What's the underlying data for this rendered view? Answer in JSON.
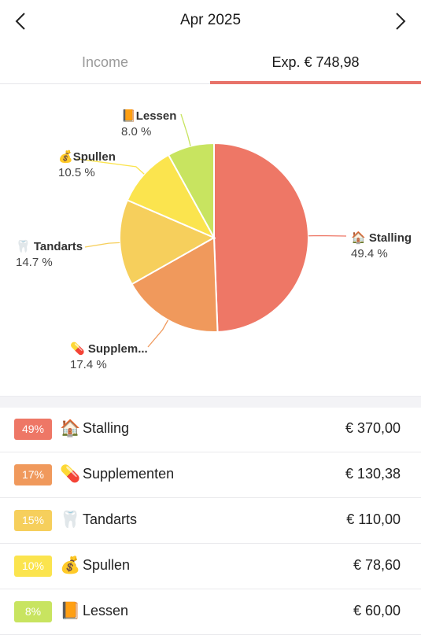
{
  "header": {
    "month": "Apr 2025"
  },
  "tabs": {
    "income_label": "Income",
    "expense_label": "Exp. € 748,98"
  },
  "chart_data": {
    "type": "pie",
    "slices": [
      {
        "label": "Stalling",
        "display_label": "Stalling",
        "icon": "🏠",
        "value": 370.0,
        "percent_label": "49.4 %",
        "color": "#ee7766"
      },
      {
        "label": "Supplementen",
        "display_label": "Supplem...",
        "icon": "💊",
        "value": 130.38,
        "percent_label": "17.4 %",
        "color": "#f0995c"
      },
      {
        "label": "Tandarts",
        "display_label": "Tandarts",
        "icon": "🦷",
        "value": 110.0,
        "percent_label": "14.7 %",
        "color": "#f6cf5c"
      },
      {
        "label": "Spullen",
        "display_label": "Spullen",
        "icon": "💰",
        "value": 78.6,
        "percent_label": "10.5 %",
        "color": "#fbe44e"
      },
      {
        "label": "Lessen",
        "display_label": "Lessen",
        "icon": "📙",
        "value": 60.0,
        "percent_label": "8.0 %",
        "color": "#c8e460"
      }
    ]
  },
  "list": [
    {
      "badge": "49%",
      "icon": "🏠",
      "label": "Stalling",
      "amount": "€ 370,00",
      "color": "#ee7766"
    },
    {
      "badge": "17%",
      "icon": "💊",
      "label": "Supplementen",
      "amount": "€ 130,38",
      "color": "#f0995c"
    },
    {
      "badge": "15%",
      "icon": "🦷",
      "label": "Tandarts",
      "amount": "€ 110,00",
      "color": "#f6cf5c"
    },
    {
      "badge": "10%",
      "icon": "💰",
      "label": "Spullen",
      "amount": "€ 78,60",
      "color": "#fbe44e"
    },
    {
      "badge": "8%",
      "icon": "📙",
      "label": "Lessen",
      "amount": "€ 60,00",
      "color": "#c8e460"
    }
  ]
}
